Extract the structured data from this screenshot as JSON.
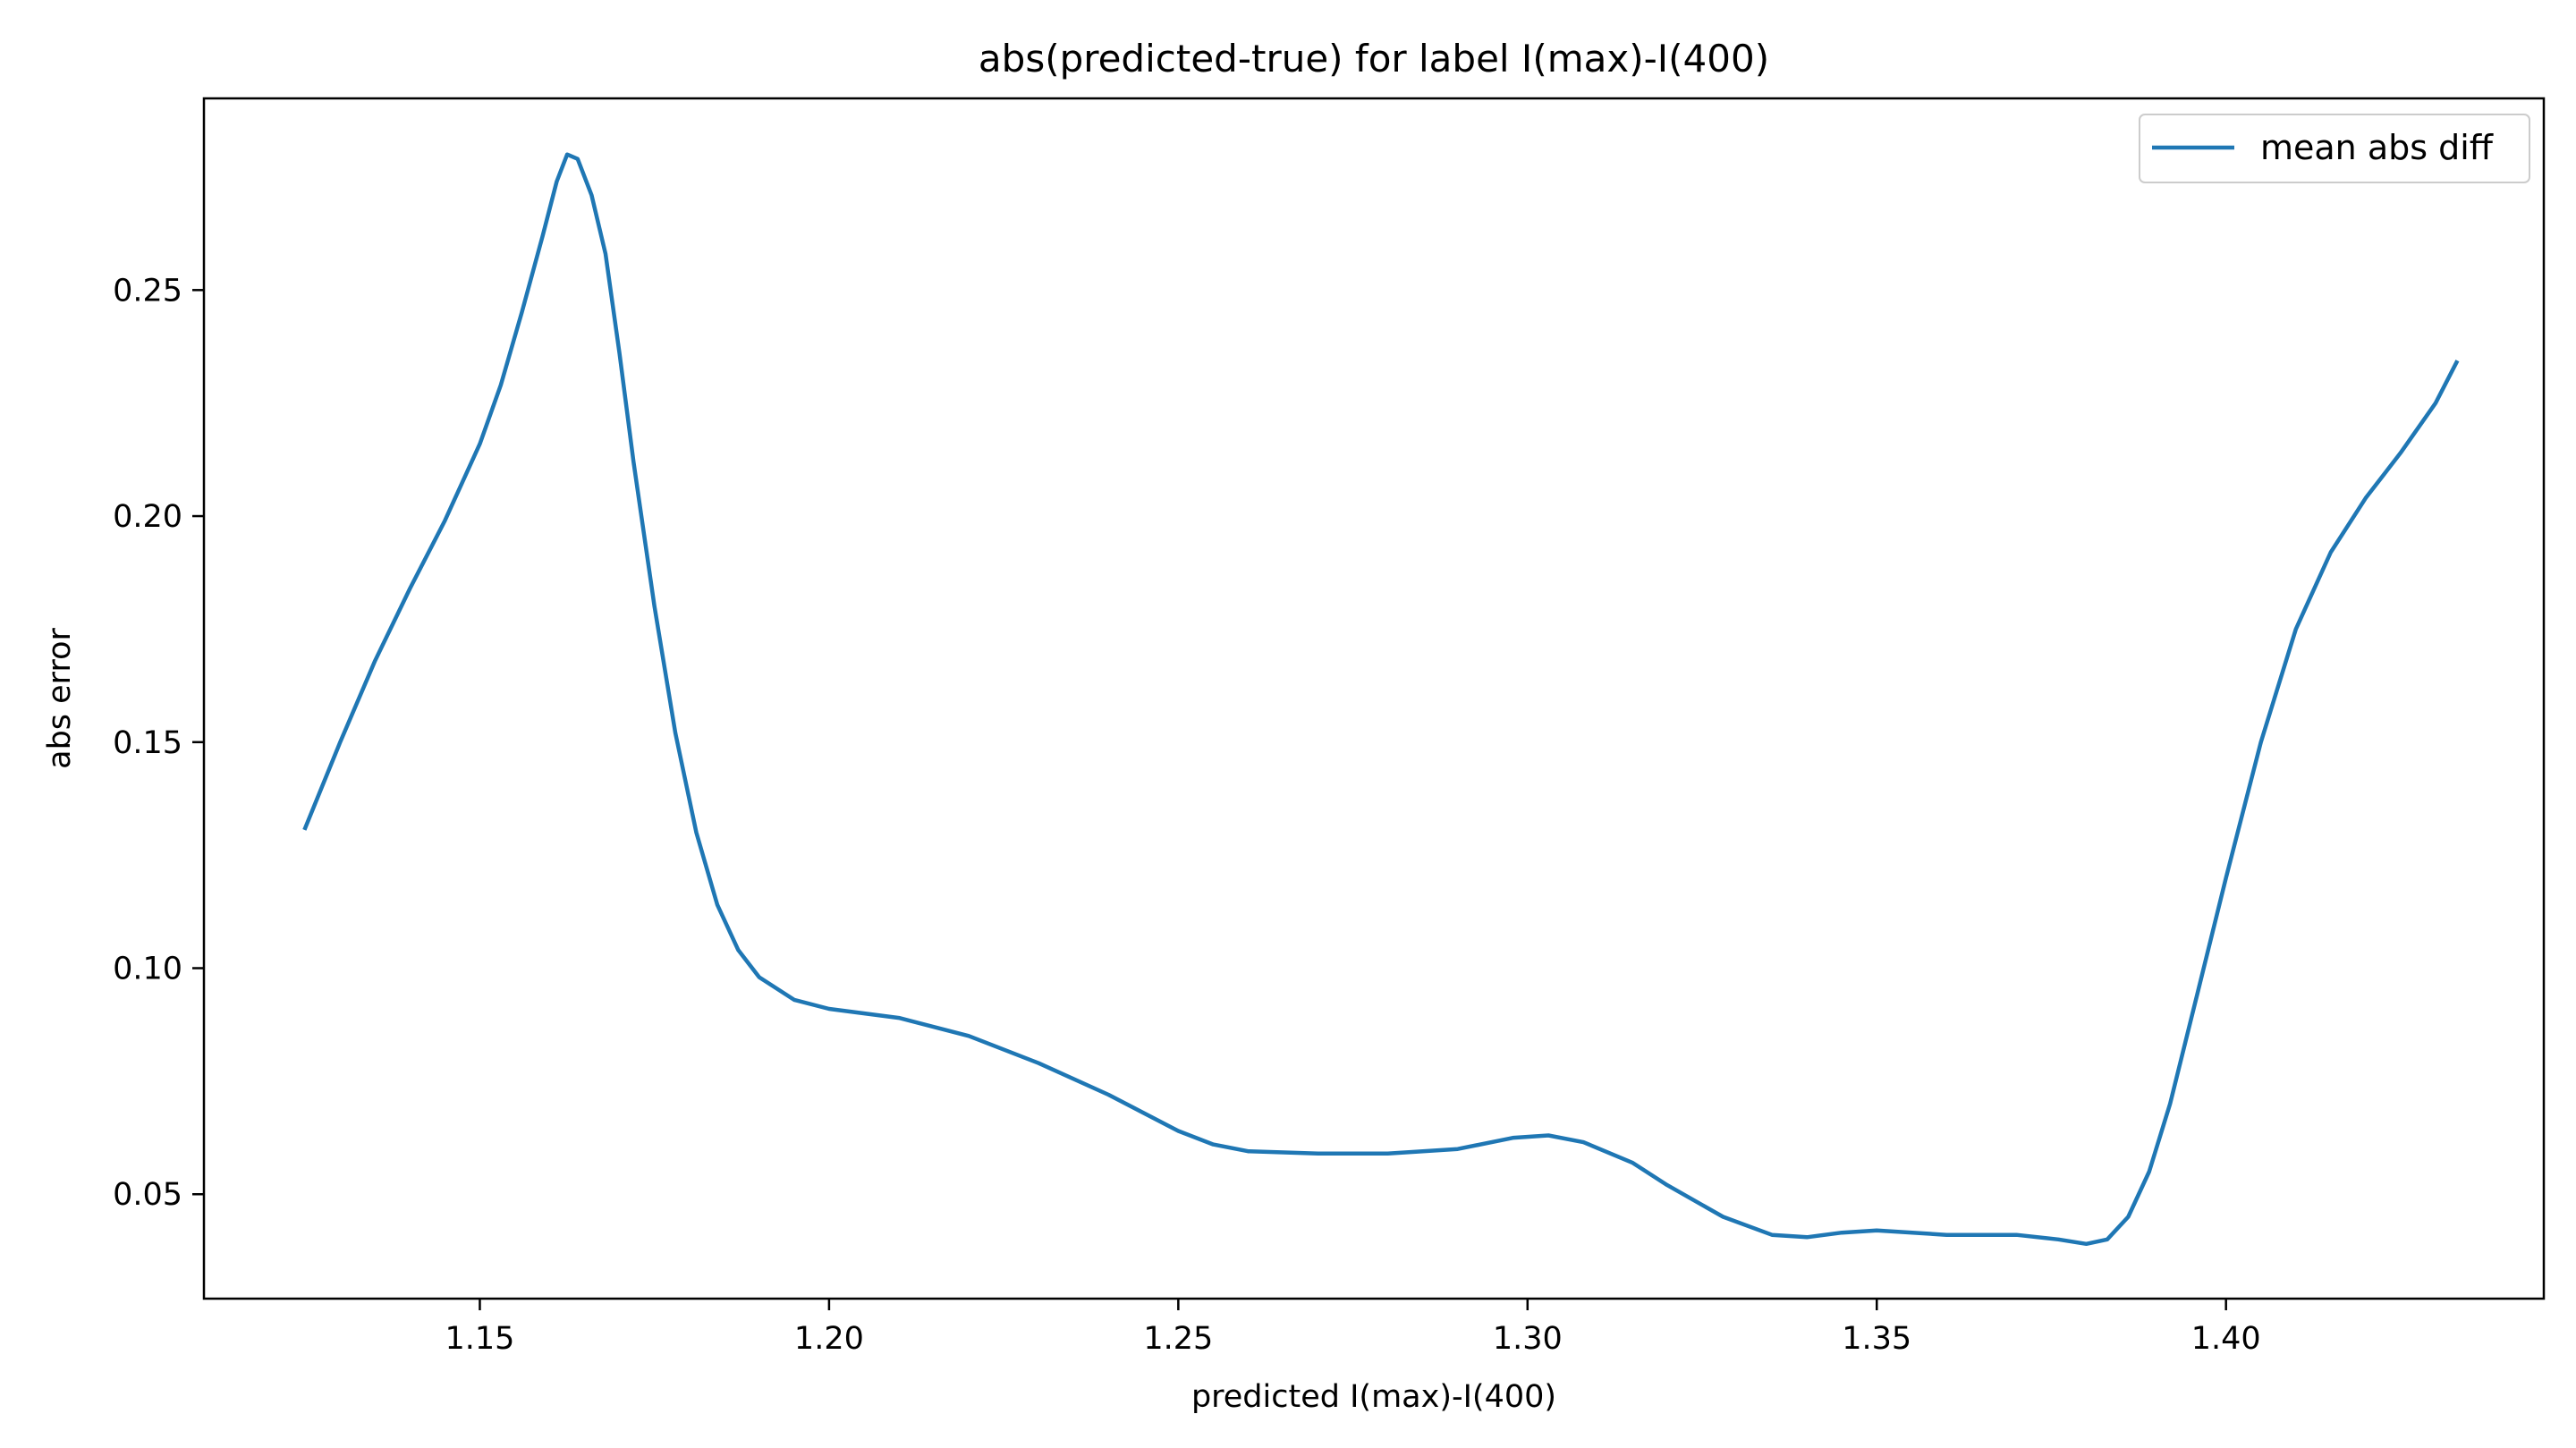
{
  "chart_data": {
    "type": "line",
    "title": "abs(predicted-true) for label I(max)-I(400)",
    "xlabel": "predicted I(max)-I(400)",
    "ylabel": "abs error",
    "xlim": [
      1.1105,
      1.4455
    ],
    "ylim": [
      0.0269,
      0.2924
    ],
    "xticks": [
      1.15,
      1.2,
      1.25,
      1.3,
      1.35,
      1.4
    ],
    "xtick_labels": [
      "1.15",
      "1.20",
      "1.25",
      "1.30",
      "1.35",
      "1.40"
    ],
    "yticks": [
      0.05,
      0.1,
      0.15,
      0.2,
      0.25
    ],
    "ytick_labels": [
      "0.05",
      "0.10",
      "0.15",
      "0.20",
      "0.25"
    ],
    "grid": false,
    "legend_position": "top-right",
    "series": [
      {
        "name": "mean abs diff",
        "color": "#1f77b4",
        "points": [
          [
            1.125,
            0.131
          ],
          [
            1.13,
            0.15
          ],
          [
            1.135,
            0.168
          ],
          [
            1.14,
            0.184
          ],
          [
            1.145,
            0.199
          ],
          [
            1.15,
            0.216
          ],
          [
            1.153,
            0.229
          ],
          [
            1.156,
            0.245
          ],
          [
            1.159,
            0.262
          ],
          [
            1.161,
            0.274
          ],
          [
            1.1625,
            0.28
          ],
          [
            1.164,
            0.279
          ],
          [
            1.166,
            0.271
          ],
          [
            1.168,
            0.258
          ],
          [
            1.17,
            0.236
          ],
          [
            1.172,
            0.212
          ],
          [
            1.175,
            0.18
          ],
          [
            1.178,
            0.152
          ],
          [
            1.181,
            0.13
          ],
          [
            1.184,
            0.114
          ],
          [
            1.187,
            0.104
          ],
          [
            1.19,
            0.098
          ],
          [
            1.195,
            0.093
          ],
          [
            1.2,
            0.091
          ],
          [
            1.21,
            0.089
          ],
          [
            1.22,
            0.085
          ],
          [
            1.23,
            0.079
          ],
          [
            1.24,
            0.072
          ],
          [
            1.25,
            0.064
          ],
          [
            1.255,
            0.061
          ],
          [
            1.26,
            0.0595
          ],
          [
            1.27,
            0.059
          ],
          [
            1.28,
            0.059
          ],
          [
            1.29,
            0.06
          ],
          [
            1.298,
            0.0625
          ],
          [
            1.303,
            0.063
          ],
          [
            1.308,
            0.0615
          ],
          [
            1.315,
            0.057
          ],
          [
            1.32,
            0.052
          ],
          [
            1.328,
            0.045
          ],
          [
            1.335,
            0.041
          ],
          [
            1.34,
            0.0405
          ],
          [
            1.345,
            0.0415
          ],
          [
            1.35,
            0.042
          ],
          [
            1.36,
            0.041
          ],
          [
            1.37,
            0.041
          ],
          [
            1.376,
            0.04
          ],
          [
            1.38,
            0.039
          ],
          [
            1.383,
            0.04
          ],
          [
            1.386,
            0.045
          ],
          [
            1.389,
            0.055
          ],
          [
            1.392,
            0.07
          ],
          [
            1.396,
            0.095
          ],
          [
            1.4,
            0.12
          ],
          [
            1.405,
            0.15
          ],
          [
            1.41,
            0.175
          ],
          [
            1.415,
            0.192
          ],
          [
            1.42,
            0.204
          ],
          [
            1.425,
            0.214
          ],
          [
            1.43,
            0.225
          ],
          [
            1.433,
            0.234
          ]
        ]
      }
    ]
  }
}
